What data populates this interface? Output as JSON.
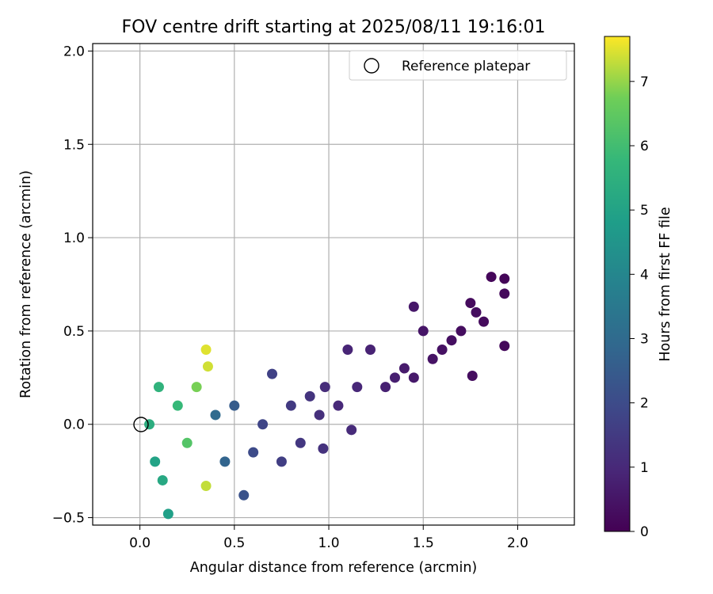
{
  "chart_data": {
    "type": "scatter",
    "title": "FOV centre drift starting at 2025/08/11 19:16:01",
    "xlabel": "Angular distance from reference (arcmin)",
    "ylabel": "Rotation from reference (arcmin)",
    "xlim": [
      -0.25,
      2.3
    ],
    "ylim": [
      -0.54,
      2.04
    ],
    "xticks": [
      0.0,
      0.5,
      1.0,
      1.5,
      2.0
    ],
    "xtick_labels": [
      "0.0",
      "0.5",
      "1.0",
      "1.5",
      "2.0"
    ],
    "yticks": [
      -0.5,
      0.0,
      0.5,
      1.0,
      1.5,
      2.0
    ],
    "ytick_labels": [
      "−0.5",
      "0.0",
      "0.5",
      "1.0",
      "1.5",
      "2.0"
    ],
    "grid": true,
    "legend": {
      "position": "top-right",
      "entries": [
        "Reference platepar"
      ]
    },
    "reference_point": {
      "x": 0.0,
      "y": 0.0,
      "label": "Reference platepar",
      "marker": "open-circle"
    },
    "colorbar": {
      "label": "Hours from first FF file",
      "colormap": "viridis",
      "range": [
        0,
        7.7
      ],
      "ticks": [
        0,
        1,
        2,
        3,
        4,
        5,
        6,
        7
      ],
      "tick_labels": [
        "0",
        "1",
        "2",
        "3",
        "4",
        "5",
        "6",
        "7"
      ]
    },
    "series": [
      {
        "color_value": "time_hours",
        "points": [
          {
            "x": 1.93,
            "y": 0.78,
            "t": 0.1
          },
          {
            "x": 1.86,
            "y": 0.79,
            "t": 0.15
          },
          {
            "x": 1.93,
            "y": 0.7,
            "t": 0.2
          },
          {
            "x": 1.93,
            "y": 0.42,
            "t": 0.2
          },
          {
            "x": 1.76,
            "y": 0.26,
            "t": 0.3
          },
          {
            "x": 1.78,
            "y": 0.6,
            "t": 0.3
          },
          {
            "x": 1.7,
            "y": 0.5,
            "t": 0.3
          },
          {
            "x": 1.82,
            "y": 0.55,
            "t": 0.25
          },
          {
            "x": 1.65,
            "y": 0.45,
            "t": 0.35
          },
          {
            "x": 1.6,
            "y": 0.4,
            "t": 0.4
          },
          {
            "x": 1.75,
            "y": 0.65,
            "t": 0.25
          },
          {
            "x": 1.55,
            "y": 0.35,
            "t": 0.45
          },
          {
            "x": 1.5,
            "y": 0.5,
            "t": 0.5
          },
          {
            "x": 1.45,
            "y": 0.63,
            "t": 0.55
          },
          {
            "x": 1.45,
            "y": 0.25,
            "t": 0.6
          },
          {
            "x": 1.4,
            "y": 0.3,
            "t": 0.65
          },
          {
            "x": 1.35,
            "y": 0.25,
            "t": 0.75
          },
          {
            "x": 1.3,
            "y": 0.2,
            "t": 0.8
          },
          {
            "x": 1.22,
            "y": 0.4,
            "t": 0.85
          },
          {
            "x": 1.1,
            "y": 0.4,
            "t": 0.9
          },
          {
            "x": 1.15,
            "y": 0.2,
            "t": 0.95
          },
          {
            "x": 1.05,
            "y": 0.1,
            "t": 1.0
          },
          {
            "x": 1.12,
            "y": -0.03,
            "t": 1.05
          },
          {
            "x": 0.98,
            "y": 0.2,
            "t": 1.1
          },
          {
            "x": 0.95,
            "y": 0.05,
            "t": 1.2
          },
          {
            "x": 0.97,
            "y": -0.13,
            "t": 1.25
          },
          {
            "x": 0.9,
            "y": 0.15,
            "t": 1.3
          },
          {
            "x": 0.85,
            "y": -0.1,
            "t": 1.4
          },
          {
            "x": 0.8,
            "y": 0.1,
            "t": 1.5
          },
          {
            "x": 0.75,
            "y": -0.2,
            "t": 1.6
          },
          {
            "x": 0.7,
            "y": 0.27,
            "t": 1.7
          },
          {
            "x": 0.65,
            "y": 0.0,
            "t": 1.8
          },
          {
            "x": 0.6,
            "y": -0.15,
            "t": 2.0
          },
          {
            "x": 0.55,
            "y": -0.38,
            "t": 2.2
          },
          {
            "x": 0.5,
            "y": 0.1,
            "t": 2.5
          },
          {
            "x": 0.45,
            "y": -0.2,
            "t": 2.8
          },
          {
            "x": 0.4,
            "y": 0.05,
            "t": 3.0
          },
          {
            "x": 0.35,
            "y": 0.4,
            "t": 7.5
          },
          {
            "x": 0.36,
            "y": 0.31,
            "t": 7.4
          },
          {
            "x": 0.35,
            "y": -0.33,
            "t": 7.3
          },
          {
            "x": 0.3,
            "y": 0.2,
            "t": 6.8
          },
          {
            "x": 0.25,
            "y": -0.1,
            "t": 6.3
          },
          {
            "x": 0.2,
            "y": 0.1,
            "t": 5.8
          },
          {
            "x": 0.15,
            "y": -0.48,
            "t": 4.9
          },
          {
            "x": 0.12,
            "y": -0.3,
            "t": 5.2
          },
          {
            "x": 0.1,
            "y": 0.2,
            "t": 5.6
          },
          {
            "x": 0.05,
            "y": 0.0,
            "t": 5.4
          },
          {
            "x": 0.08,
            "y": -0.2,
            "t": 5.0
          }
        ]
      }
    ]
  }
}
